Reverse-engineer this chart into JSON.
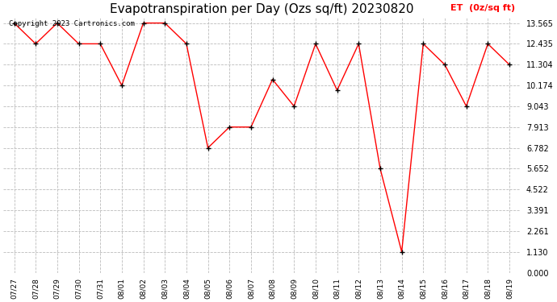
{
  "title": "Evapotranspiration per Day (Ozs sq/ft) 20230820",
  "legend_label": "ET  (0z/sq ft)",
  "copyright_text": "Copyright 2023 Cartronics.com",
  "x_labels": [
    "07/27",
    "07/28",
    "07/29",
    "07/30",
    "07/31",
    "08/01",
    "08/02",
    "08/03",
    "08/04",
    "08/05",
    "08/06",
    "08/07",
    "08/08",
    "08/09",
    "08/10",
    "08/11",
    "08/12",
    "08/13",
    "08/14",
    "08/15",
    "08/16",
    "08/17",
    "08/18",
    "08/19"
  ],
  "y_values": [
    13.565,
    12.435,
    13.565,
    12.435,
    12.435,
    10.174,
    13.565,
    13.565,
    12.435,
    6.782,
    7.913,
    7.913,
    10.5,
    9.043,
    12.435,
    9.913,
    12.435,
    5.652,
    1.13,
    12.435,
    11.304,
    9.043,
    12.435,
    11.304
  ],
  "y_ticks": [
    0.0,
    1.13,
    2.261,
    3.391,
    4.522,
    5.652,
    6.782,
    7.913,
    9.043,
    10.174,
    11.304,
    12.435,
    13.565
  ],
  "line_color": "red",
  "marker_color": "black",
  "grid_color": "#bbbbbb",
  "background_color": "white",
  "title_fontsize": 11,
  "legend_color": "red",
  "copyright_color": "black",
  "copyright_fontsize": 6.5,
  "ylim": [
    0.0,
    13.565
  ]
}
